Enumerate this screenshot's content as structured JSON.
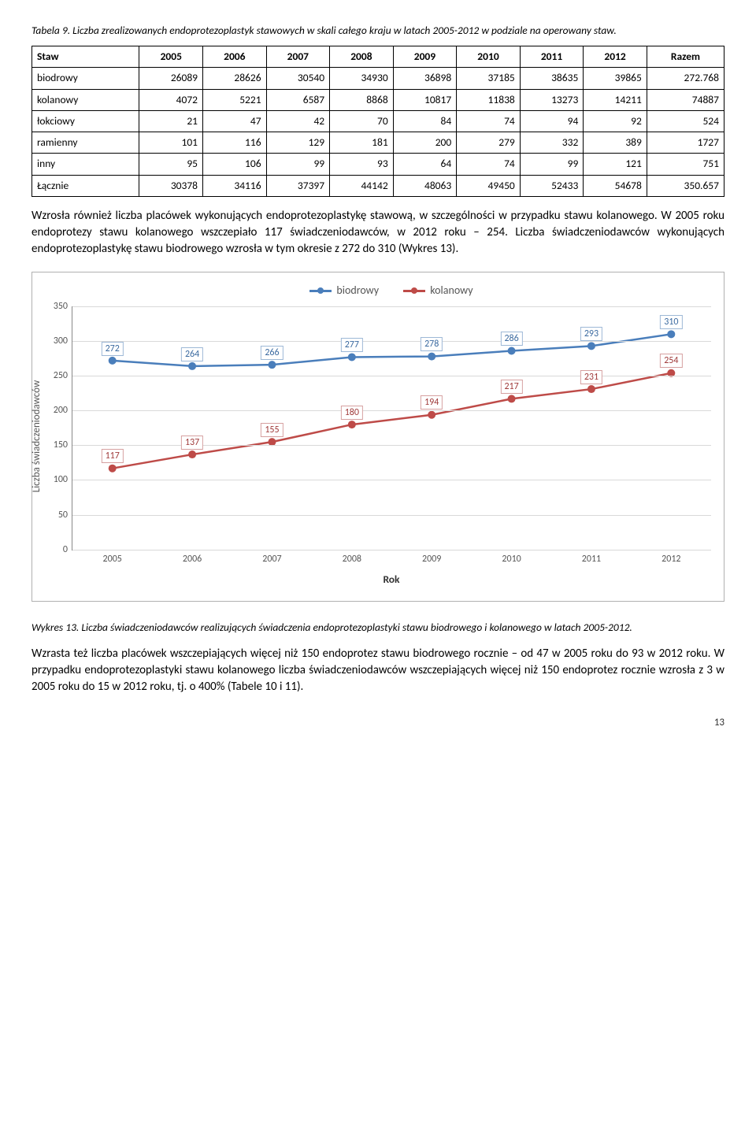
{
  "tableCaption": "Tabela 9. Liczba zrealizowanych endoprotezoplastyk stawowych w skali całego kraju w latach 2005-2012 w podziale na operowany staw.",
  "table": {
    "cornerLabel": "Staw",
    "yearCols": [
      "2005",
      "2006",
      "2007",
      "2008",
      "2009",
      "2010",
      "2011",
      "2012"
    ],
    "sumCol": "Razem",
    "rows": [
      {
        "label": "biodrowy",
        "vals": [
          "26089",
          "28626",
          "30540",
          "34930",
          "36898",
          "37185",
          "38635",
          "39865"
        ],
        "sum": "272.768"
      },
      {
        "label": "kolanowy",
        "vals": [
          "4072",
          "5221",
          "6587",
          "8868",
          "10817",
          "11838",
          "13273",
          "14211"
        ],
        "sum": "74887"
      },
      {
        "label": "łokciowy",
        "vals": [
          "21",
          "47",
          "42",
          "70",
          "84",
          "74",
          "94",
          "92"
        ],
        "sum": "524"
      },
      {
        "label": "ramienny",
        "vals": [
          "101",
          "116",
          "129",
          "181",
          "200",
          "279",
          "332",
          "389"
        ],
        "sum": "1727"
      },
      {
        "label": "inny",
        "vals": [
          "95",
          "106",
          "99",
          "93",
          "64",
          "74",
          "99",
          "121"
        ],
        "sum": "751"
      },
      {
        "label": "Łącznie",
        "vals": [
          "30378",
          "34116",
          "37397",
          "44142",
          "48063",
          "49450",
          "52433",
          "54678"
        ],
        "sum": "350.657"
      }
    ]
  },
  "para1": "Wzrosła również liczba placówek wykonujących endoprotezoplastykę stawową, w szczególności w przypadku stawu kolanowego. W 2005 roku endoprotezy stawu kolanowego wszczepiało 117 świadczeniodawców, w 2012 roku – 254. Liczba świadczeniodawców wykonujących endoprotezoplastykę stawu biodrowego wzrosła w tym okresie z 272 do 310 (Wykres 13).",
  "chart": {
    "legend": {
      "a": "biodrowy",
      "b": "kolanowy"
    },
    "ymax": 350,
    "ystep": 50,
    "yticks": [
      "0",
      "50",
      "100",
      "150",
      "200",
      "250",
      "300",
      "350"
    ],
    "yTitle": "Liczba świadczeniodawców",
    "xTitle": "Rok",
    "years": [
      "2005",
      "2006",
      "2007",
      "2008",
      "2009",
      "2010",
      "2011",
      "2012"
    ],
    "seriesA": {
      "color": "#4a7ebb",
      "labelClass": "lbl-blue",
      "values": [
        272,
        264,
        266,
        277,
        278,
        286,
        293,
        310
      ]
    },
    "seriesB": {
      "color": "#be4b48",
      "labelClass": "lbl-red",
      "values": [
        117,
        137,
        155,
        180,
        194,
        217,
        231,
        254
      ]
    }
  },
  "figCaption": "Wykres 13. Liczba świadczeniodawców realizujących świadczenia endoprotezoplastyki stawu biodrowego i kolanowego w latach 2005-2012.",
  "para2": "Wzrasta też liczba placówek wszczepiających więcej niż 150 endoprotez stawu biodrowego rocznie – od 47 w 2005 roku do 93 w 2012 roku. W przypadku endoprotezoplastyki stawu kolanowego liczba świadczeniodawców wszczepiających więcej niż 150 endoprotez rocznie wzrosła z 3 w 2005 roku do 15 w 2012 roku, tj. o 400% (Tabele 10 i 11).",
  "pageNum": "13"
}
